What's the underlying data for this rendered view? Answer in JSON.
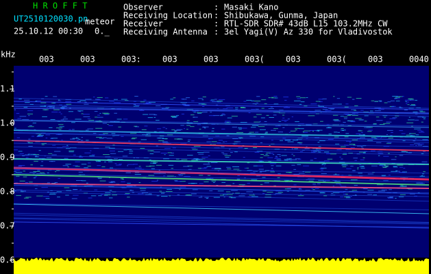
{
  "header": {
    "app": "H R O F F T",
    "file": "UT2510120030.pn",
    "mode": "meteor",
    "datetime": "25.10.12 00:30",
    "status": "0._",
    "fields": [
      {
        "label": "Observer",
        "value": "Masaki Kano"
      },
      {
        "label": "Receiving Location",
        "value": "Shibukawa, Gunma, Japan"
      },
      {
        "label": "Receiver",
        "value": "RTL-SDR SDR# 43dB L15 103.2MHz CW"
      },
      {
        "label": "Receiving Antenna",
        "value": "3el Yagi(V) Az 330 for Vladivostok"
      }
    ],
    "separator": ":"
  },
  "y_axis": {
    "unit": "kHz",
    "labels": [
      "1.1",
      "1.0",
      "0.9",
      "0.8",
      "0.7",
      "0.6"
    ]
  },
  "x_axis": {
    "labels": [
      "003",
      "003",
      "003:",
      "003",
      "003",
      "003(",
      "003",
      "003(",
      "003",
      "0040"
    ]
  }
}
